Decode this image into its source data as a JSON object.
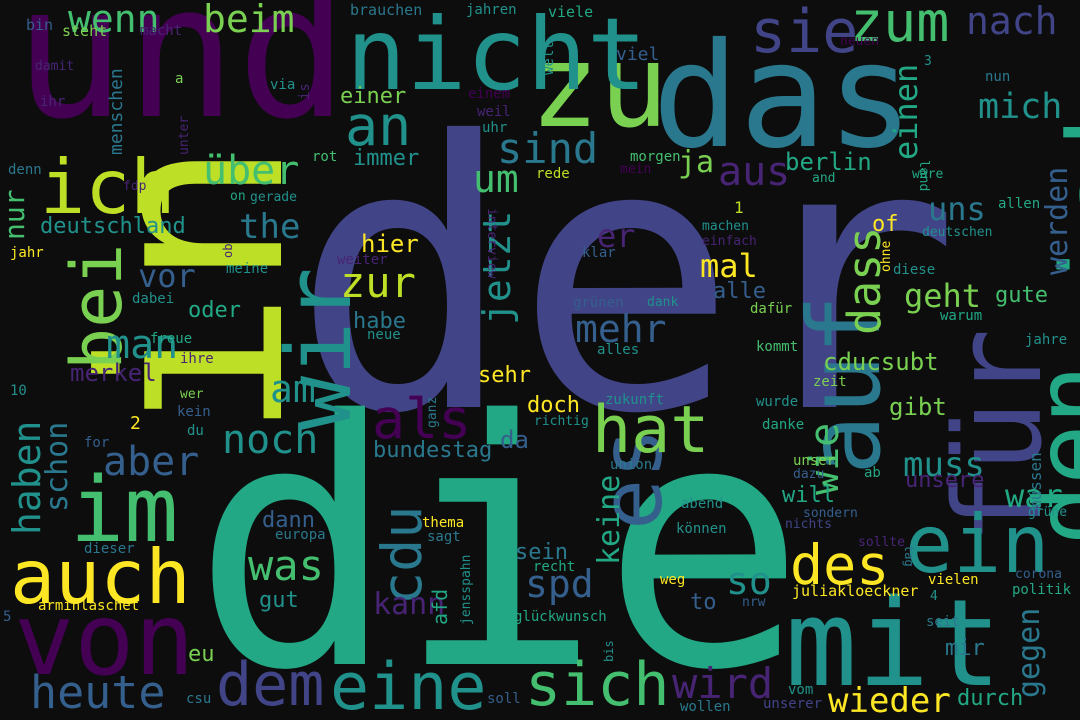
{
  "palette": {
    "background": "#0d0d0d",
    "dark_purple": "#440154",
    "purple": "#482475",
    "indigo": "#414487",
    "blue_slate": "#355f8d",
    "steel_blue": "#2a788e",
    "teal": "#21918c",
    "green_teal": "#22a884",
    "green": "#44bf70",
    "light_green": "#7ad151",
    "lime": "#bddf26",
    "yellow": "#fde725"
  },
  "words": [
    {
      "text": "der",
      "color": "#414487"
    },
    {
      "text": "die",
      "color": "#22a884"
    },
    {
      "text": "und",
      "color": "#440154"
    },
    {
      "text": "in",
      "color": "#bddf26"
    },
    {
      "text": "das",
      "color": "#2a788e"
    },
    {
      "text": "zu",
      "color": "#7ad151"
    },
    {
      "text": "nicht",
      "color": "#21918c"
    },
    {
      "text": "ist",
      "color": "#22a884"
    },
    {
      "text": "für",
      "color": "#414487"
    },
    {
      "text": "den",
      "color": "#22a884"
    },
    {
      "text": "auf",
      "color": "#2a788e"
    },
    {
      "text": "mit",
      "color": "#21918c"
    },
    {
      "text": "von",
      "color": "#440154"
    },
    {
      "text": "ein",
      "color": "#21918c"
    },
    {
      "text": "im",
      "color": "#44bf70"
    },
    {
      "text": "wir",
      "color": "#21918c"
    },
    {
      "text": "auch",
      "color": "#fde725"
    },
    {
      "text": "es",
      "color": "#355f8d"
    },
    {
      "text": "ich",
      "color": "#bddf26"
    },
    {
      "text": "bei",
      "color": "#7ad151"
    },
    {
      "text": "eine",
      "color": "#21918c"
    },
    {
      "text": "sich",
      "color": "#44bf70"
    },
    {
      "text": "hat",
      "color": "#7ad151"
    },
    {
      "text": "dem",
      "color": "#414487"
    },
    {
      "text": "heute",
      "color": "#355f8d"
    },
    {
      "text": "des",
      "color": "#fde725"
    },
    {
      "text": "sie",
      "color": "#414487"
    },
    {
      "text": "zum",
      "color": "#44bf70"
    },
    {
      "text": "an",
      "color": "#21918c"
    },
    {
      "text": "als",
      "color": "#440154"
    },
    {
      "text": "cdu",
      "color": "#2a788e"
    },
    {
      "text": "dass",
      "color": "#7ad151"
    },
    {
      "text": "wie",
      "color": "#44bf70"
    },
    {
      "text": "haben",
      "color": "#21918c"
    },
    {
      "text": "wenn",
      "color": "#44bf70"
    },
    {
      "text": "nach",
      "color": "#414487"
    },
    {
      "text": "sind",
      "color": "#2a788e"
    },
    {
      "text": "noch",
      "color": "#21918c"
    },
    {
      "text": "aber",
      "color": "#355f8d"
    },
    {
      "text": "was",
      "color": "#44bf70"
    },
    {
      "text": "wird",
      "color": "#482475"
    },
    {
      "text": "so",
      "color": "#21918c"
    },
    {
      "text": "spd",
      "color": "#355f8d"
    },
    {
      "text": "um",
      "color": "#44bf70"
    },
    {
      "text": "zur",
      "color": "#bddf26"
    },
    {
      "text": "man",
      "color": "#21918c"
    },
    {
      "text": "am",
      "color": "#21918c"
    },
    {
      "text": "über",
      "color": "#44bf70"
    },
    {
      "text": "aus",
      "color": "#482475"
    },
    {
      "text": "jetzt",
      "color": "#21918c"
    },
    {
      "text": "mehr",
      "color": "#355f8d"
    },
    {
      "text": "beim",
      "color": "#7ad151"
    },
    {
      "text": "mich",
      "color": "#21918c"
    },
    {
      "text": "einen",
      "color": "#22a884"
    },
    {
      "text": "werden",
      "color": "#355f8d"
    },
    {
      "text": "gegen",
      "color": "#2a788e"
    },
    {
      "text": "wieder",
      "color": "#fde725"
    },
    {
      "text": "muss",
      "color": "#21918c"
    },
    {
      "text": "war",
      "color": "#22a884"
    },
    {
      "text": "geht",
      "color": "#7ad151"
    },
    {
      "text": "uns",
      "color": "#2a788e"
    },
    {
      "text": "the",
      "color": "#2a788e"
    },
    {
      "text": "vor",
      "color": "#355f8d"
    },
    {
      "text": "schon",
      "color": "#2a788e"
    },
    {
      "text": "nur",
      "color": "#44bf70"
    },
    {
      "text": "keine",
      "color": "#22a884"
    },
    {
      "text": "kann",
      "color": "#482475"
    },
    {
      "text": "ja",
      "color": "#7ad151"
    },
    {
      "text": "er",
      "color": "#482475"
    },
    {
      "text": "mal",
      "color": "#fde725"
    },
    {
      "text": "hier",
      "color": "#fde725"
    },
    {
      "text": "gibt",
      "color": "#7ad151"
    },
    {
      "text": "berlin",
      "color": "#22a884"
    },
    {
      "text": "cducsubt",
      "color": "#7ad151"
    },
    {
      "text": "deutschland",
      "color": "#21918c"
    },
    {
      "text": "merkel",
      "color": "#482475"
    },
    {
      "text": "bundestag",
      "color": "#2a788e"
    },
    {
      "text": "unsere",
      "color": "#482475"
    },
    {
      "text": "immer",
      "color": "#21918c"
    },
    {
      "text": "einer",
      "color": "#7ad151"
    },
    {
      "text": "habe",
      "color": "#2a788e"
    },
    {
      "text": "oder",
      "color": "#22a884"
    },
    {
      "text": "da",
      "color": "#355f8d"
    },
    {
      "text": "doch",
      "color": "#fde725"
    },
    {
      "text": "sehr",
      "color": "#fde725"
    },
    {
      "text": "alle",
      "color": "#355f8d"
    },
    {
      "text": "gute",
      "color": "#44bf70"
    },
    {
      "text": "dann",
      "color": "#355f8d"
    },
    {
      "text": "sein",
      "color": "#2a788e"
    },
    {
      "text": "gut",
      "color": "#21918c"
    },
    {
      "text": "eu",
      "color": "#7ad151"
    },
    {
      "text": "mir",
      "color": "#2a788e"
    },
    {
      "text": "durch",
      "color": "#22a884"
    },
    {
      "text": "will",
      "color": "#22a884"
    },
    {
      "text": "of",
      "color": "#fde725"
    },
    {
      "text": "to",
      "color": "#355f8d"
    },
    {
      "text": "afd",
      "color": "#22a884"
    },
    {
      "text": "müssen",
      "color": "#2a788e"
    },
    {
      "text": "menschen",
      "color": "#2a788e"
    },
    {
      "text": "viel",
      "color": "#355f8d"
    },
    {
      "text": "brauchen",
      "color": "#2a788e"
    },
    {
      "text": "jahren",
      "color": "#21918c"
    },
    {
      "text": "viele",
      "color": "#22a884"
    },
    {
      "text": "welt",
      "color": "#21918c"
    },
    {
      "text": "steht",
      "color": "#7ad151"
    },
    {
      "text": "bin",
      "color": "#355f8d"
    },
    {
      "text": "macht",
      "color": "#482475"
    },
    {
      "text": "neuen",
      "color": "#440154"
    },
    {
      "text": "nun",
      "color": "#2a788e"
    },
    {
      "text": "damit",
      "color": "#482475"
    },
    {
      "text": "ihr",
      "color": "#482475"
    },
    {
      "text": "via",
      "color": "#21918c"
    },
    {
      "text": "is",
      "color": "#482475"
    },
    {
      "text": "a",
      "color": "#7ad151"
    },
    {
      "text": "einem",
      "color": "#440154"
    },
    {
      "text": "weil",
      "color": "#482475"
    },
    {
      "text": "uhr",
      "color": "#21918c"
    },
    {
      "text": "3",
      "color": "#21918c"
    },
    {
      "text": "land",
      "color": "#22a884"
    },
    {
      "text": "denn",
      "color": "#2a788e"
    },
    {
      "text": "unter",
      "color": "#482475"
    },
    {
      "text": "rot",
      "color": "#44bf70"
    },
    {
      "text": "morgen",
      "color": "#44bf70"
    },
    {
      "text": "mein",
      "color": "#440154"
    },
    {
      "text": "rede",
      "color": "#bddf26"
    },
    {
      "text": "and",
      "color": "#22a884"
    },
    {
      "text": "wäre",
      "color": "#22a884"
    },
    {
      "text": "allen",
      "color": "#22a884"
    },
    {
      "text": "deutschen",
      "color": "#21918c"
    },
    {
      "text": "fdp",
      "color": "#482475"
    },
    {
      "text": "on",
      "color": "#22a884"
    },
    {
      "text": "gerade",
      "color": "#21918c"
    },
    {
      "text": "interview",
      "color": "#482475"
    },
    {
      "text": "machen",
      "color": "#21918c"
    },
    {
      "text": "einfach",
      "color": "#482475"
    },
    {
      "text": "1",
      "color": "#bddf26"
    },
    {
      "text": "jahr",
      "color": "#fde725"
    },
    {
      "text": "ob",
      "color": "#482475"
    },
    {
      "text": "weiter",
      "color": "#482475"
    },
    {
      "text": "klar",
      "color": "#355f8d"
    },
    {
      "text": "ohne",
      "color": "#fde725"
    },
    {
      "text": "diese",
      "color": "#21918c"
    },
    {
      "text": "meine",
      "color": "#21918c"
    },
    {
      "text": "dabei",
      "color": "#21918c"
    },
    {
      "text": "grünen",
      "color": "#355f8d"
    },
    {
      "text": "dank",
      "color": "#21918c"
    },
    {
      "text": "dafür",
      "color": "#7ad151"
    },
    {
      "text": "warum",
      "color": "#22a884"
    },
    {
      "text": "freue",
      "color": "#22a884"
    },
    {
      "text": "neue",
      "color": "#21918c"
    },
    {
      "text": "alles",
      "color": "#21918c"
    },
    {
      "text": "kommt",
      "color": "#44bf70"
    },
    {
      "text": "jahre",
      "color": "#21918c"
    },
    {
      "text": "ihre",
      "color": "#482475"
    },
    {
      "text": "wer",
      "color": "#7ad151"
    },
    {
      "text": "kein",
      "color": "#355f8d"
    },
    {
      "text": "zukunft",
      "color": "#21918c"
    },
    {
      "text": "zeit",
      "color": "#7ad151"
    },
    {
      "text": "10",
      "color": "#21918c"
    },
    {
      "text": "du",
      "color": "#21918c"
    },
    {
      "text": "ganz",
      "color": "#2a788e"
    },
    {
      "text": "richtig",
      "color": "#21918c"
    },
    {
      "text": "wurde",
      "color": "#21918c"
    },
    {
      "text": "danke",
      "color": "#22a884"
    },
    {
      "text": "unser",
      "color": "#7ad151"
    },
    {
      "text": "dazu",
      "color": "#355f8d"
    },
    {
      "text": "ab",
      "color": "#22a884"
    },
    {
      "text": "union",
      "color": "#2a788e"
    },
    {
      "text": "2",
      "color": "#fde725"
    },
    {
      "text": "for",
      "color": "#355f8d"
    },
    {
      "text": "abend",
      "color": "#21918c"
    },
    {
      "text": "sondern",
      "color": "#355f8d"
    },
    {
      "text": "nichts",
      "color": "#414487"
    },
    {
      "text": "können",
      "color": "#21918c"
    },
    {
      "text": "grüne",
      "color": "#21918c"
    },
    {
      "text": "sollte",
      "color": "#482475"
    },
    {
      "text": "tag",
      "color": "#2a788e"
    },
    {
      "text": "thema",
      "color": "#fde725"
    },
    {
      "text": "europa",
      "color": "#2a788e"
    },
    {
      "text": "sagt",
      "color": "#2a788e"
    },
    {
      "text": "dieser",
      "color": "#2a788e"
    },
    {
      "text": "jensspahn",
      "color": "#21918c"
    },
    {
      "text": "recht",
      "color": "#22a884"
    },
    {
      "text": "juliakloeckner",
      "color": "#fde725"
    },
    {
      "text": "corona",
      "color": "#355f8d"
    },
    {
      "text": "vielen",
      "color": "#fde725"
    },
    {
      "text": "politik",
      "color": "#22a884"
    },
    {
      "text": "weg",
      "color": "#fde725"
    },
    {
      "text": "nrw",
      "color": "#355f8d"
    },
    {
      "text": "4",
      "color": "#21918c"
    },
    {
      "text": "5",
      "color": "#355f8d"
    },
    {
      "text": "arminlaschet",
      "color": "#fde725"
    },
    {
      "text": "glückwunsch",
      "color": "#22a884"
    },
    {
      "text": "seit",
      "color": "#2a788e"
    },
    {
      "text": "bis",
      "color": "#21918c"
    },
    {
      "text": "vom",
      "color": "#21918c"
    },
    {
      "text": "csu",
      "color": "#2a788e"
    },
    {
      "text": "soll",
      "color": "#355f8d"
    },
    {
      "text": "wollen",
      "color": "#2a788e"
    },
    {
      "text": "unserer",
      "color": "#414487"
    }
  ]
}
